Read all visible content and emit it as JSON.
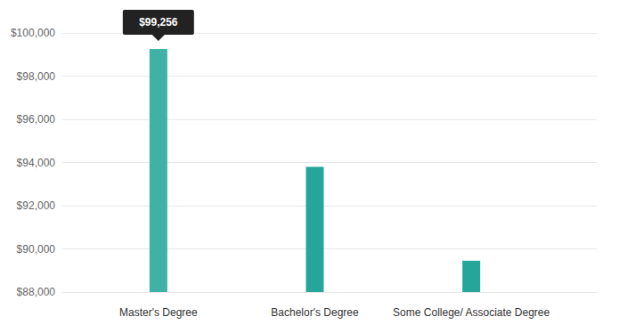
{
  "chart_data": {
    "type": "bar",
    "categories": [
      "Master's Degree",
      "Bachelor's Degree",
      "Some College/ Associate Degree"
    ],
    "values": [
      99256,
      93800,
      89450
    ],
    "value_labels": [
      "$99,256",
      null,
      null
    ],
    "data_labels": true,
    "colors": [
      "#40b1a6",
      "#26a69a",
      "#26a69a"
    ],
    "ylim": [
      88000,
      100000
    ],
    "yticks": [
      {
        "value": 88000,
        "label": "$88,000"
      },
      {
        "value": 90000,
        "label": "$90,000"
      },
      {
        "value": 92000,
        "label": "$92,000"
      },
      {
        "value": 94000,
        "label": "$94,000"
      },
      {
        "value": 96000,
        "label": "$96,000"
      },
      {
        "value": 98000,
        "label": "$98,000"
      },
      {
        "value": 100000,
        "label": "$100,000"
      }
    ],
    "grid": true
  }
}
